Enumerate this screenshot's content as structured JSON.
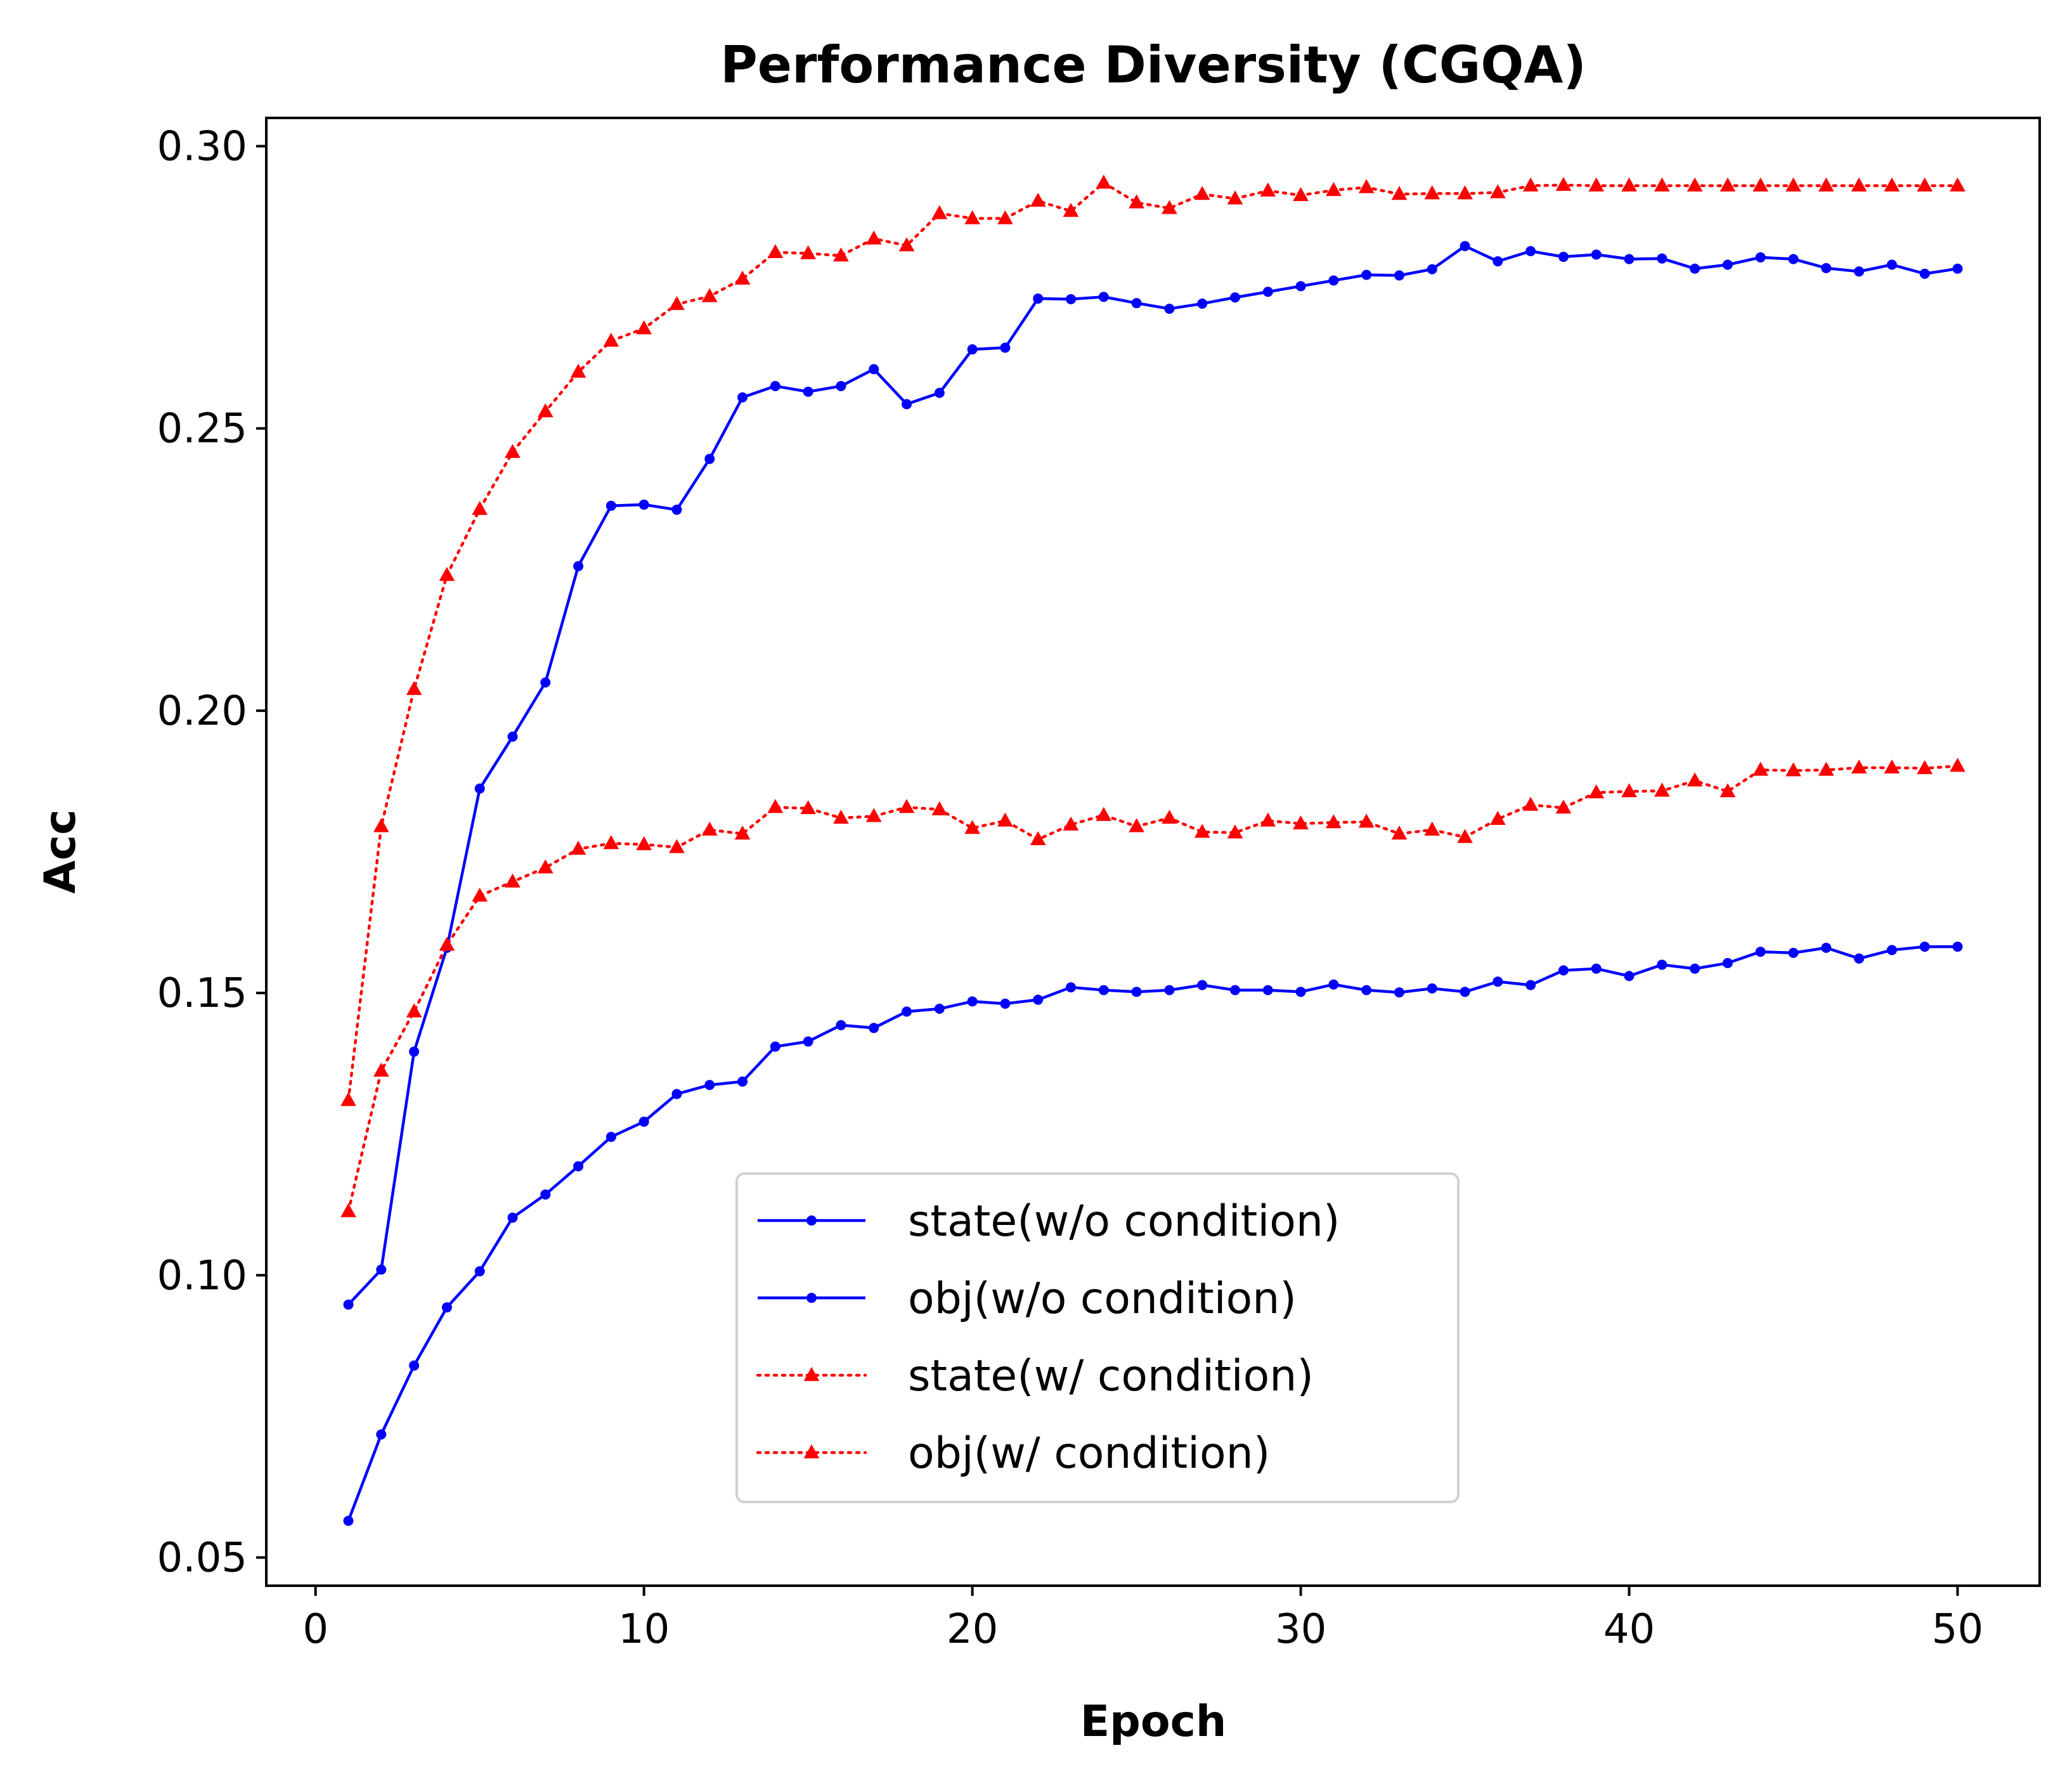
{
  "chart_data": {
    "type": "line",
    "title": "Performance Diversity (CGQA)",
    "xlabel": "Epoch",
    "ylabel": "Acc",
    "xlim": [
      -1.5,
      52.5
    ],
    "ylim": [
      0.045,
      0.305
    ],
    "xticks": [
      0,
      10,
      20,
      30,
      40,
      50
    ],
    "xtick_labels": [
      "0",
      "10",
      "20",
      "30",
      "40",
      "50"
    ],
    "yticks": [
      0.05,
      0.1,
      0.15,
      0.2,
      0.25,
      0.3
    ],
    "ytick_labels": [
      "0.05",
      "0.10",
      "0.15",
      "0.20",
      "0.25",
      "0.30"
    ],
    "grid": false,
    "legend_position": "lower-center",
    "x": [
      1,
      2,
      3,
      4,
      5,
      6,
      7,
      8,
      9,
      10,
      11,
      12,
      13,
      14,
      15,
      16,
      17,
      18,
      19,
      20,
      21,
      22,
      23,
      24,
      25,
      26,
      27,
      28,
      29,
      30,
      31,
      32,
      33,
      34,
      35,
      36,
      37,
      38,
      39,
      40,
      41,
      42,
      43,
      44,
      45,
      46,
      47,
      48,
      49,
      50
    ],
    "series": [
      {
        "name": "state(w/o condition)",
        "color": "#0000ff",
        "linestyle": "solid",
        "marker": "circle",
        "values": [
          0.0565,
          0.0718,
          0.084,
          0.0943,
          0.1007,
          0.1102,
          0.1143,
          0.1193,
          0.1245,
          0.1272,
          0.1321,
          0.1337,
          0.1343,
          0.1405,
          0.1414,
          0.1443,
          0.1438,
          0.1467,
          0.1472,
          0.1485,
          0.1481,
          0.1488,
          0.151,
          0.1505,
          0.1502,
          0.1505,
          0.1514,
          0.1505,
          0.1505,
          0.1502,
          0.1515,
          0.1505,
          0.1501,
          0.1508,
          0.1502,
          0.152,
          0.1514,
          0.154,
          0.1543,
          0.153,
          0.155,
          0.1543,
          0.1553,
          0.1573,
          0.1571,
          0.158,
          0.1561,
          0.1576,
          0.1582,
          0.1582
        ]
      },
      {
        "name": "obj(w/o condition)",
        "color": "#0000ff",
        "linestyle": "solid",
        "marker": "circle",
        "values": [
          0.0948,
          0.101,
          0.1396,
          0.158,
          0.1862,
          0.1954,
          0.205,
          0.2256,
          0.2363,
          0.2365,
          0.2356,
          0.2446,
          0.2555,
          0.2575,
          0.2565,
          0.2575,
          0.2605,
          0.2543,
          0.2563,
          0.264,
          0.2643,
          0.273,
          0.2729,
          0.2733,
          0.2722,
          0.2712,
          0.2721,
          0.2732,
          0.2742,
          0.2752,
          0.2762,
          0.2772,
          0.2771,
          0.2782,
          0.2823,
          0.2796,
          0.2814,
          0.2804,
          0.2808,
          0.28,
          0.2801,
          0.2783,
          0.279,
          0.2803,
          0.28,
          0.2784,
          0.2778,
          0.279,
          0.2774,
          0.2783
        ]
      },
      {
        "name": "state(w/ condition)",
        "color": "#ff0000",
        "linestyle": "dotted",
        "marker": "triangle",
        "values": [
          0.1113,
          0.1362,
          0.1467,
          0.1585,
          0.1672,
          0.1697,
          0.1722,
          0.1755,
          0.1765,
          0.1763,
          0.1758,
          0.1789,
          0.1782,
          0.1829,
          0.1827,
          0.181,
          0.1813,
          0.1829,
          0.1825,
          0.1792,
          0.1805,
          0.1772,
          0.1798,
          0.1815,
          0.1795,
          0.181,
          0.1785,
          0.1784,
          0.1805,
          0.18,
          0.1802,
          0.1803,
          0.1782,
          0.1789,
          0.1776,
          0.1808,
          0.1833,
          0.1828,
          0.1855,
          0.1857,
          0.1858,
          0.1876,
          0.1857,
          0.1895,
          0.1894,
          0.1895,
          0.1899,
          0.1899,
          0.1898,
          0.1902
        ]
      },
      {
        "name": "obj(w/ condition)",
        "color": "#ff0000",
        "linestyle": "dotted",
        "marker": "triangle",
        "values": [
          0.131,
          0.1795,
          0.2038,
          0.224,
          0.2357,
          0.2458,
          0.253,
          0.26,
          0.2655,
          0.2677,
          0.272,
          0.2734,
          0.2765,
          0.2812,
          0.281,
          0.2806,
          0.2836,
          0.2824,
          0.2881,
          0.2872,
          0.2872,
          0.2903,
          0.2885,
          0.2935,
          0.29,
          0.289,
          0.2915,
          0.2907,
          0.2921,
          0.2913,
          0.2922,
          0.2927,
          0.2915,
          0.2916,
          0.2916,
          0.2918,
          0.293,
          0.2931,
          0.293,
          0.293,
          0.293,
          0.293,
          0.293,
          0.293,
          0.293,
          0.293,
          0.293,
          0.293,
          0.293,
          0.293
        ]
      }
    ]
  }
}
